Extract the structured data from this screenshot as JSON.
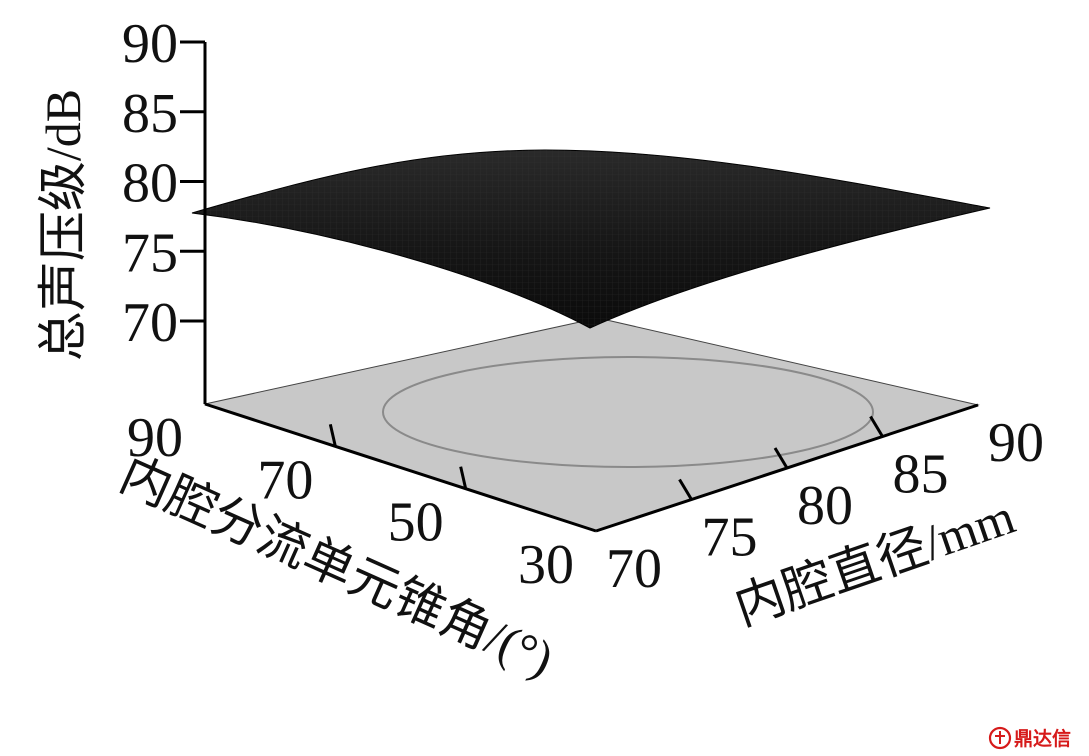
{
  "chart_data": {
    "type": "surface",
    "title": "",
    "zlabel": "总声压级/dB",
    "z_ticks": [
      90,
      85,
      80,
      75,
      70
    ],
    "zlim": [
      70,
      90
    ],
    "ylabel": "内腔分流单元锥角/(°)",
    "y_ticks": [
      90,
      70,
      50,
      30
    ],
    "ylim": [
      30,
      90
    ],
    "xlabel": "内腔直径/mm",
    "x_ticks": [
      70,
      75,
      80,
      85,
      90
    ],
    "xlim": [
      70,
      90
    ],
    "surface": {
      "corner_values": [
        {
          "diameter": 70,
          "angle": 30,
          "spl": 72
        },
        {
          "diameter": 90,
          "angle": 30,
          "spl": 78
        },
        {
          "diameter": 70,
          "angle": 90,
          "spl": 78
        },
        {
          "diameter": 90,
          "angle": 90,
          "spl": 81
        }
      ],
      "peak": {
        "diameter": 84,
        "angle": 62,
        "spl": 82
      }
    },
    "floor_contour": true,
    "surface_color": "#1c1c1c",
    "floor_color": "#c8c8c8"
  },
  "watermark": {
    "text": "鼎达信",
    "color": "#d61a1a"
  }
}
